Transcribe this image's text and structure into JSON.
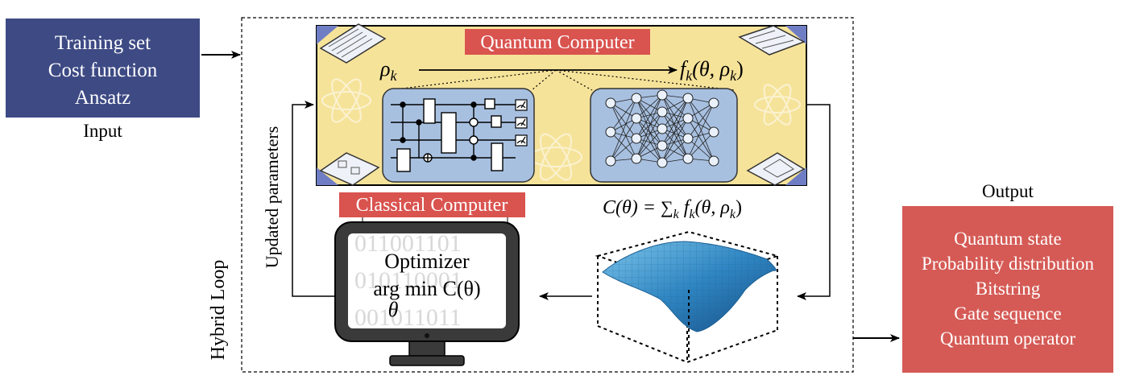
{
  "input": {
    "lines": [
      "Training set",
      "Cost function",
      "Ansatz"
    ],
    "caption": "Input"
  },
  "quantum_computer": {
    "label": "Quantum Computer",
    "input_symbol": "ρ",
    "input_subscript": "k",
    "output_function": "f",
    "output_subscript": "k",
    "output_args": "(θ, ρ",
    "output_args_sub": "k",
    "output_args_close": ")"
  },
  "classical_computer": {
    "label": "Classical Computer",
    "optimizer_title": "Optimizer",
    "optimizer_expr": "arg min C(θ)",
    "optimizer_under": "θ",
    "binary_rows": [
      "011001101",
      "010110001",
      "001011011"
    ]
  },
  "cost_function": {
    "lhs": "C(θ) = ",
    "sum": "∑",
    "sum_sub": "k",
    "f": " f",
    "f_sub": "k",
    "args": "(θ, ρ",
    "args_sub": "k",
    "close": ")"
  },
  "loop": {
    "updated_parameters": "Updated parameters",
    "hybrid_loop": "Hybrid Loop"
  },
  "output": {
    "caption": "Output",
    "lines": [
      "Quantum state",
      "Probability distribution",
      "Bitstring",
      "Gate sequence",
      "Quantum operator"
    ]
  },
  "colors": {
    "input_box": "#3d4a84",
    "quantum_bg": "#f6e39a",
    "label_red": "#d9534f",
    "output_box": "#d55a55",
    "panel_blue": "#a8c0e0",
    "monitor_frame": "#3a3a3a",
    "surface": "#3b8fc8"
  }
}
